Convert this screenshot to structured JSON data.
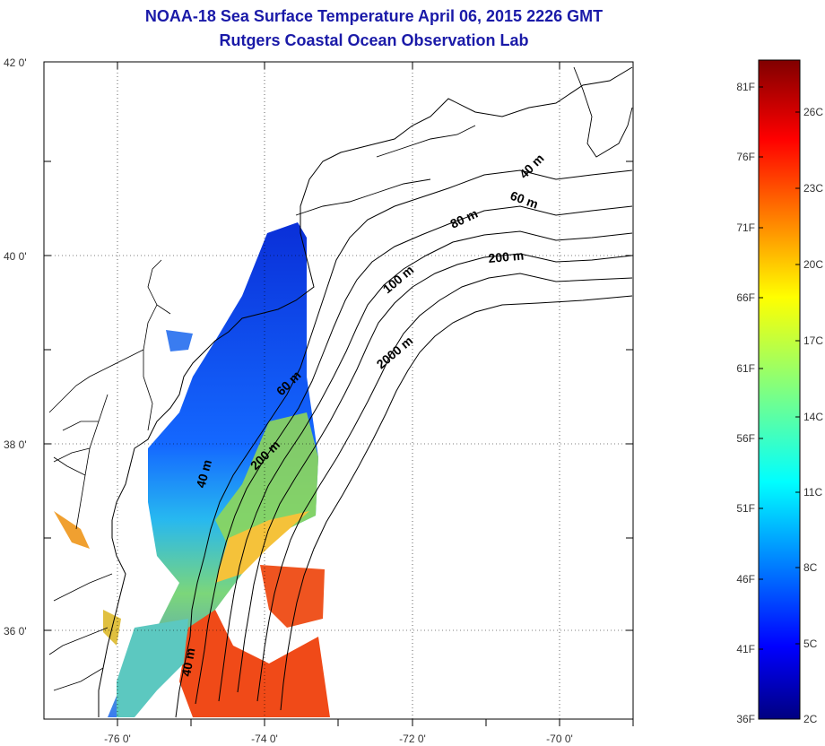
{
  "map": {
    "title": "NOAA-18 Sea Surface Temperature April 06, 2015 2226 GMT",
    "subtitle": "Rutgers Coastal Ocean Observation Lab",
    "lat_ticks": [
      "42 0'",
      "40 0'",
      "38 0'",
      "36 0'"
    ],
    "lon_ticks": [
      "-76 0'",
      "-74 0'",
      "-72 0'",
      "-70 0'"
    ],
    "contour_labels": [
      "40 m",
      "60 m",
      "80 m",
      "200 m",
      "100 m",
      "2000 m",
      "60 m",
      "200 m",
      "40 m",
      "40 m"
    ],
    "grid": "dotted",
    "colors": {
      "title": "#1a1aa8",
      "coast": "#000000"
    }
  },
  "colorbar": {
    "fahrenheit_labels": [
      "81F",
      "76F",
      "71F",
      "66F",
      "61F",
      "56F",
      "51F",
      "46F",
      "41F",
      "36F"
    ],
    "celsius_labels": [
      "26C",
      "23C",
      "20C",
      "17C",
      "14C",
      "11C",
      "8C",
      "5C",
      "2C"
    ],
    "colormap": "jet",
    "colors": [
      "#000080",
      "#0000ff",
      "#0080ff",
      "#00ffff",
      "#80ff80",
      "#ffff00",
      "#ff8000",
      "#ff0000",
      "#800000"
    ]
  }
}
